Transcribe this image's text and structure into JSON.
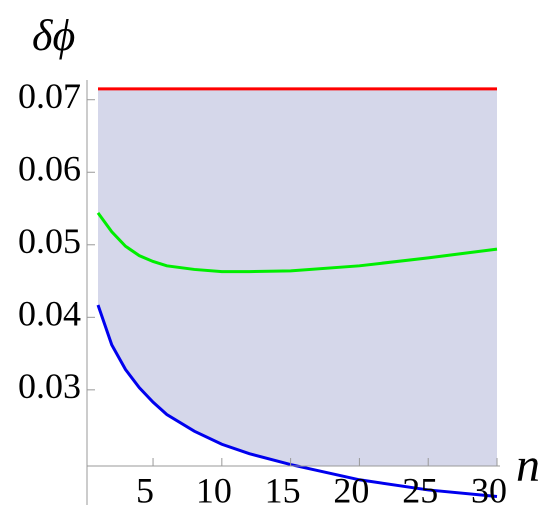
{
  "chart_data": {
    "type": "line",
    "y_label": "δϕ",
    "x_label": "n",
    "x": [
      1,
      2,
      3,
      4,
      5,
      6,
      8,
      10,
      12,
      15,
      20,
      25,
      30
    ],
    "series": [
      {
        "color": "#ff0000",
        "values": [
          0.0715,
          0.0715,
          0.0715,
          0.0715,
          0.0715,
          0.0715,
          0.0715,
          0.0715,
          0.0715,
          0.0715,
          0.0715,
          0.0715,
          0.0715
        ]
      },
      {
        "color": "#00ee00",
        "values": [
          0.0544,
          0.0518,
          0.0498,
          0.0485,
          0.0477,
          0.0471,
          0.0466,
          0.0463,
          0.0463,
          0.0464,
          0.0471,
          0.0482,
          0.0494
        ]
      },
      {
        "color": "#0000ee",
        "values": [
          0.0417,
          0.0362,
          0.0328,
          0.0303,
          0.0283,
          0.0266,
          0.0243,
          0.0225,
          0.0212,
          0.0197,
          0.0176,
          0.0162,
          0.0153
        ]
      }
    ],
    "fill_color": "#d5d7ea",
    "xlim": [
      0.2,
      30
    ],
    "ylim": [
      0.0144,
      0.0752
    ],
    "xticks": [
      5,
      10,
      15,
      20,
      25,
      30
    ],
    "yticks": [
      0.03,
      0.04,
      0.05,
      0.06,
      0.07
    ]
  }
}
